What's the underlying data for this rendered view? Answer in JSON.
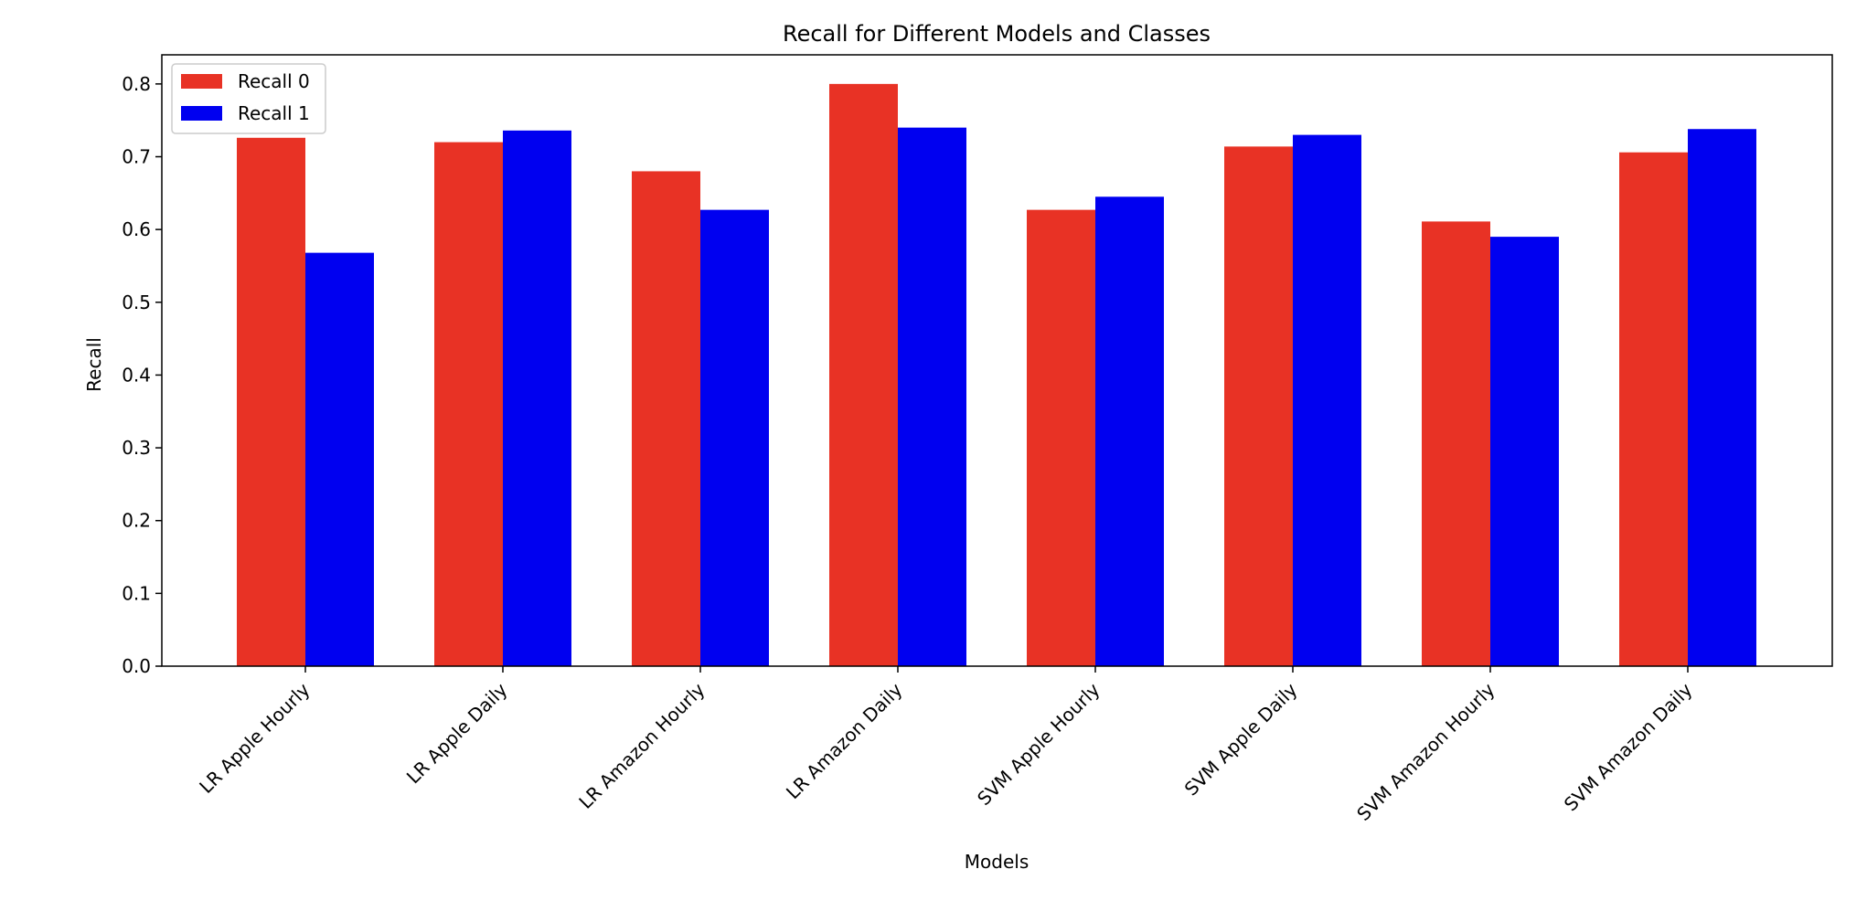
{
  "chart_data": {
    "type": "bar",
    "title": "Recall for Different Models and Classes",
    "xlabel": "Models",
    "ylabel": "Recall",
    "ylim": [
      0,
      0.84
    ],
    "yticks": [
      "0.0",
      "0.1",
      "0.2",
      "0.3",
      "0.4",
      "0.5",
      "0.6",
      "0.7",
      "0.8"
    ],
    "categories": [
      "LR Apple Hourly",
      "LR Apple Daily",
      "LR Amazon Hourly",
      "LR Amazon Daily",
      "SVM Apple Hourly",
      "SVM Apple Daily",
      "SVM Amazon Hourly",
      "SVM Amazon Daily"
    ],
    "series": [
      {
        "name": "Recall 0",
        "color": "#e83225",
        "values": [
          0.726,
          0.72,
          0.68,
          0.8,
          0.627,
          0.714,
          0.611,
          0.706
        ]
      },
      {
        "name": "Recall 1",
        "color": "#0000f0",
        "values": [
          0.568,
          0.736,
          0.627,
          0.74,
          0.645,
          0.73,
          0.59,
          0.738
        ]
      }
    ],
    "grid": false,
    "legend_position": "top-left"
  }
}
